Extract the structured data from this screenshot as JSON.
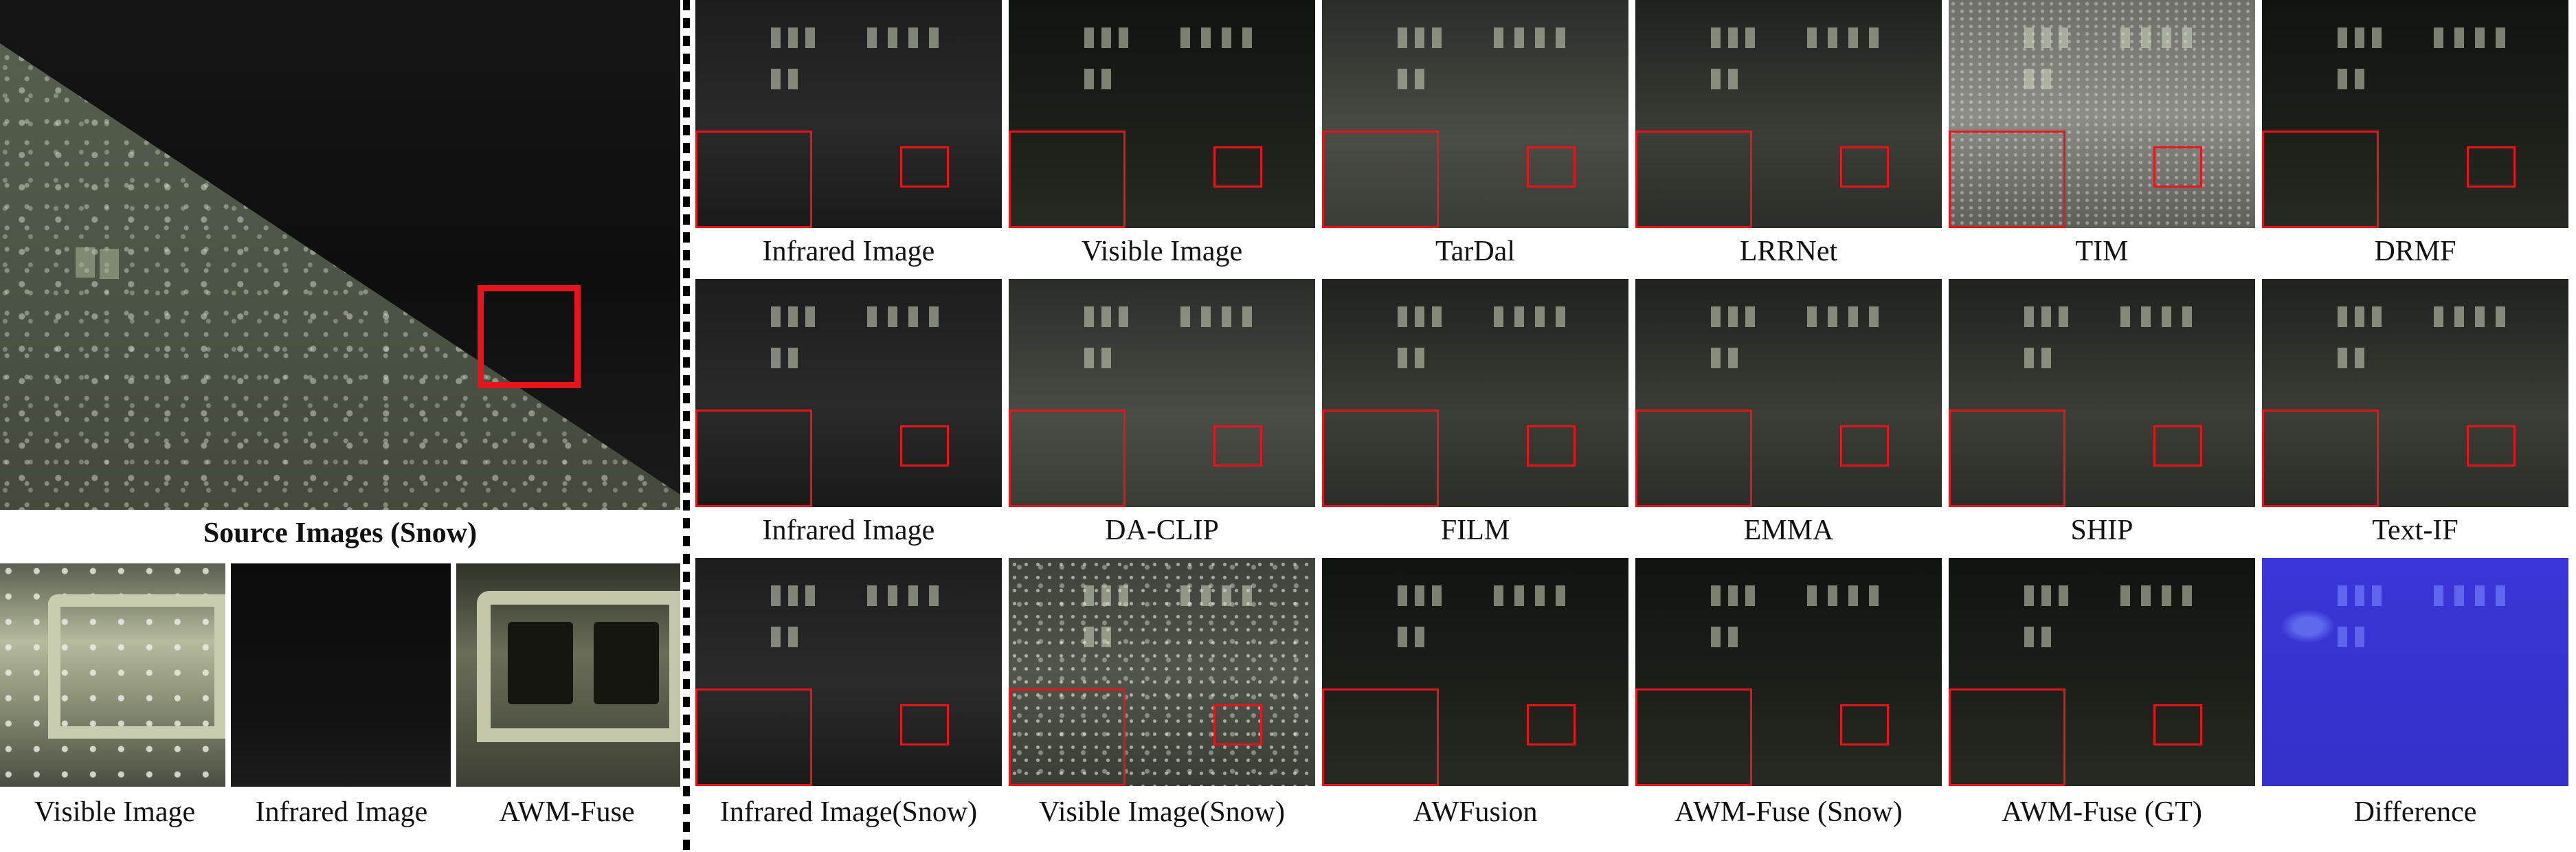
{
  "left_panel": {
    "source_caption": "Source Images (Snow)",
    "crops": [
      {
        "key": "visible",
        "label": "Visible Image"
      },
      {
        "key": "infrared",
        "label": "Infrared Image"
      },
      {
        "key": "fused",
        "label": "AWM-Fuse"
      }
    ]
  },
  "grid": {
    "rows": [
      [
        "Infrared Image",
        "Visible Image",
        "TarDal",
        "LRRNet",
        "TIM",
        "DRMF"
      ],
      [
        "Infrared Image",
        "DA-CLIP",
        "FILM",
        "EMMA",
        "SHIP",
        "Text-IF"
      ],
      [
        "Infrared Image(Snow)",
        "Visible Image(Snow)",
        "AWFusion",
        "AWM-Fuse (Snow)",
        "AWM-Fuse (GT)",
        "Difference"
      ]
    ]
  },
  "colors": {
    "highlight_box": "#e8141b",
    "difference_map": "#3430c9"
  }
}
